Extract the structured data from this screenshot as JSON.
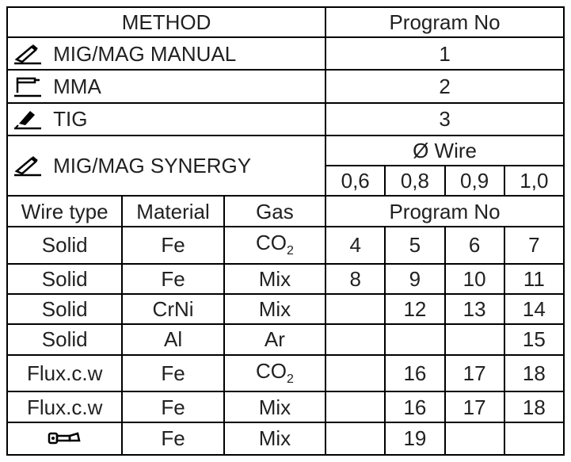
{
  "header": {
    "method": "METHOD",
    "program_no": "Program No"
  },
  "rows_top": [
    {
      "icon": "mig-torch-icon",
      "label": "MIG/MAG MANUAL",
      "prog": "1"
    },
    {
      "icon": "electrode-icon",
      "label": "MMA",
      "prog": "2"
    },
    {
      "icon": "tig-torch-icon",
      "label": "TIG",
      "prog": "3"
    }
  ],
  "synergy": {
    "icon": "synergy-torch-icon",
    "label": "MIG/MAG SYNERGY",
    "wire_hdr": "Ø Wire",
    "diam": [
      "0,6",
      "0,8",
      "0,9",
      "1,0"
    ]
  },
  "sub_hdr": {
    "wire_type": "Wire type",
    "material": "Material",
    "gas": "Gas",
    "prog": "Program No"
  },
  "data": [
    {
      "wt": "Solid",
      "m": "Fe",
      "g_html": "CO<span class='sub'>2</span>",
      "p": [
        "4",
        "5",
        "6",
        "7"
      ]
    },
    {
      "wt": "Solid",
      "m": "Fe",
      "g_html": "Mix",
      "p": [
        "8",
        "9",
        "10",
        "11"
      ]
    },
    {
      "wt": "Solid",
      "m": "CrNi",
      "g_html": "Mix",
      "p": [
        "",
        "12",
        "13",
        "14"
      ]
    },
    {
      "wt": "Solid",
      "m": "Al",
      "g_html": "Ar",
      "p": [
        "",
        "",
        "",
        "15"
      ]
    },
    {
      "wt": "Flux.c.w",
      "m": "Fe",
      "g_html": "CO<span class='sub'>2</span>",
      "p": [
        "",
        "16",
        "17",
        "18"
      ]
    },
    {
      "wt": "Flux.c.w",
      "m": "Fe",
      "g_html": "Mix",
      "p": [
        "",
        "16",
        "17",
        "18"
      ]
    },
    {
      "wt_icon": "spoolgun-icon",
      "m": "Fe",
      "g_html": "Mix",
      "p": [
        "",
        "19",
        "",
        ""
      ]
    }
  ],
  "colors": {
    "border": "#000000",
    "text": "#212121",
    "bg": "#ffffff"
  }
}
